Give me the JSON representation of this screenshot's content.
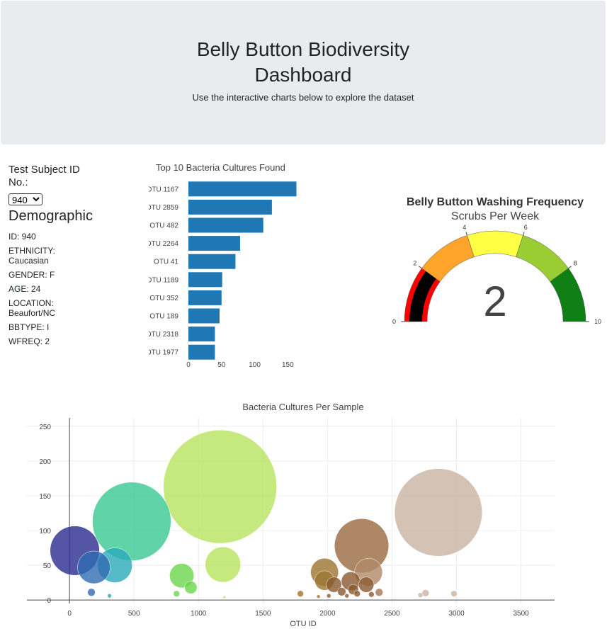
{
  "header": {
    "title_line1": "Belly Button Biodiversity",
    "title_line2": "Dashboard",
    "subtitle": "Use the interactive charts below to explore the dataset"
  },
  "sidebar": {
    "label_line1": "Test Subject ID",
    "label_line2": "No.:",
    "selected_id": "940",
    "demographic_title": "Demographic",
    "info": [
      {
        "key": "ID",
        "value": "940",
        "text": "ID: 940"
      },
      {
        "key": "ETHNICITY",
        "value": "Caucasian",
        "text1": "ETHNICITY:",
        "text2": "Caucasian"
      },
      {
        "key": "GENDER",
        "value": "F",
        "text": "GENDER: F"
      },
      {
        "key": "AGE",
        "value": "24",
        "text": "AGE: 24"
      },
      {
        "key": "LOCATION",
        "value": "Beaufort/NC",
        "text1": "LOCATION:",
        "text2": "Beaufort/NC"
      },
      {
        "key": "BBTYPE",
        "value": "I",
        "text": "BBTYPE: I"
      },
      {
        "key": "WFREQ",
        "value": "2",
        "text": "WFREQ: 2"
      }
    ]
  },
  "chart_data": [
    {
      "type": "bar",
      "orientation": "horizontal",
      "title": "Top 10 Bacteria Cultures Found",
      "categories": [
        "OTU 1167",
        "OTU 2859",
        "OTU 482",
        "OTU 2264",
        "OTU 41",
        "OTU 1189",
        "OTU 352",
        "OTU 189",
        "OTU 2318",
        "OTU 1977"
      ],
      "values": [
        163,
        126,
        113,
        78,
        71,
        51,
        50,
        47,
        40,
        40
      ],
      "xticks": [
        0,
        50,
        100,
        150
      ],
      "xlim": [
        0,
        171
      ],
      "color": "#1f77b4",
      "grid": false
    },
    {
      "type": "gauge",
      "title": "Belly Button Washing Frequency",
      "subtitle": "Scrubs Per Week",
      "value": 2,
      "range": [
        0,
        10
      ],
      "ticks": [
        0,
        2,
        4,
        6,
        8,
        10
      ],
      "steps": [
        {
          "range": [
            0,
            2
          ],
          "color": "#ff0000"
        },
        {
          "range": [
            2,
            4
          ],
          "color": "#ffa42a"
        },
        {
          "range": [
            4,
            6
          ],
          "color": "#ffff44"
        },
        {
          "range": [
            6,
            8
          ],
          "color": "#9acd32"
        },
        {
          "range": [
            8,
            10
          ],
          "color": "#0f7f16"
        }
      ],
      "bar_color": "#000000"
    },
    {
      "type": "scatter",
      "mode": "bubble",
      "title": "Bacteria Cultures Per Sample",
      "xlabel": "OTU ID",
      "xticks": [
        0,
        500,
        1000,
        1500,
        2000,
        2500,
        3000,
        3500
      ],
      "yticks": [
        0,
        50,
        100,
        150,
        200,
        250
      ],
      "xlim": [
        -330,
        3760
      ],
      "ylim": [
        -5,
        262
      ],
      "grid": true,
      "points": [
        {
          "x": 41,
          "y": 71,
          "color": "#2a2a90"
        },
        {
          "x": 189,
          "y": 47,
          "color": "#2e6bb0"
        },
        {
          "x": 352,
          "y": 50,
          "color": "#2aaab8"
        },
        {
          "x": 482,
          "y": 113,
          "color": "#38c894"
        },
        {
          "x": 1167,
          "y": 163,
          "color": "#b6e35e"
        },
        {
          "x": 1189,
          "y": 51,
          "color": "#b6e35e"
        },
        {
          "x": 2264,
          "y": 78,
          "color": "#9a6a40"
        },
        {
          "x": 2859,
          "y": 126,
          "color": "#c9b4a3"
        },
        {
          "x": 2318,
          "y": 40,
          "color": "#b08a6a"
        },
        {
          "x": 1977,
          "y": 40,
          "color": "#9c7430"
        },
        {
          "x": 870,
          "y": 35,
          "color": "#6ad64a"
        },
        {
          "x": 940,
          "y": 18,
          "color": "#6ad64a"
        },
        {
          "x": 1977,
          "y": 28,
          "color": "#9c7430"
        },
        {
          "x": 2050,
          "y": 22,
          "color": "#8a5a30"
        },
        {
          "x": 2180,
          "y": 27,
          "color": "#8a5a30"
        },
        {
          "x": 2200,
          "y": 15,
          "color": "#8a5a30"
        },
        {
          "x": 2300,
          "y": 22,
          "color": "#8a5a30"
        },
        {
          "x": 2400,
          "y": 11,
          "color": "#a07850"
        },
        {
          "x": 2760,
          "y": 10,
          "color": "#c9b4a3"
        },
        {
          "x": 2980,
          "y": 9,
          "color": "#c9b4a3"
        },
        {
          "x": 170,
          "y": 11,
          "color": "#2e6bb0"
        },
        {
          "x": 310,
          "y": 6,
          "color": "#2aaab8"
        },
        {
          "x": 830,
          "y": 9,
          "color": "#6ad64a"
        },
        {
          "x": 1790,
          "y": 9,
          "color": "#9c7430"
        },
        {
          "x": 2110,
          "y": 12,
          "color": "#8a5a30"
        },
        {
          "x": 2230,
          "y": 9,
          "color": "#8a5a30"
        },
        {
          "x": 2340,
          "y": 8,
          "color": "#8a5a30"
        },
        {
          "x": 2720,
          "y": 7,
          "color": "#c9b4a3"
        },
        {
          "x": 1930,
          "y": 5,
          "color": "#9c7430"
        },
        {
          "x": 1200,
          "y": 4,
          "color": "#b6e35e"
        },
        {
          "x": 2010,
          "y": 6,
          "color": "#8a5a30"
        },
        {
          "x": 2150,
          "y": 6,
          "color": "#8a5a30"
        }
      ]
    }
  ]
}
